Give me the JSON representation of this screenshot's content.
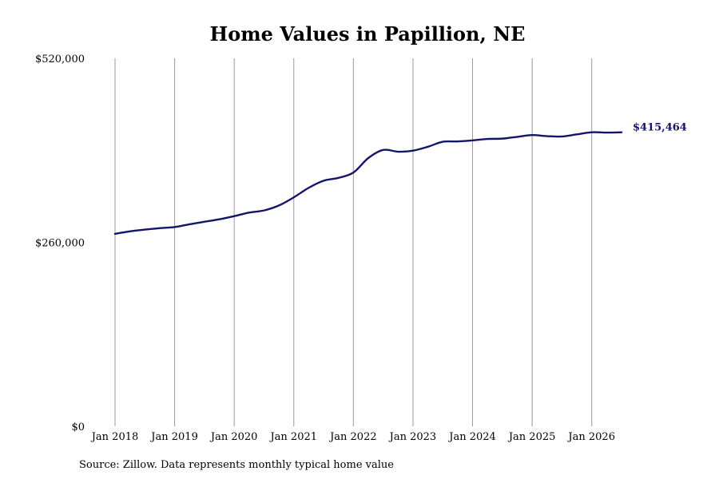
{
  "chart_data": {
    "type": "line",
    "title": "Home Values in Papillion, NE",
    "source_note": "Source: Zillow. Data represents monthly typical home value",
    "ylim": [
      0,
      520000
    ],
    "xlim": [
      2018.0,
      2026.5
    ],
    "y_ticks": [
      {
        "value": 0,
        "label": "$0"
      },
      {
        "value": 260000,
        "label": "$260,000"
      },
      {
        "value": 520000,
        "label": "$520,000"
      }
    ],
    "x_ticks": [
      {
        "value": 2018,
        "label": "Jan 2018"
      },
      {
        "value": 2019,
        "label": "Jan 2019"
      },
      {
        "value": 2020,
        "label": "Jan 2020"
      },
      {
        "value": 2021,
        "label": "Jan 2021"
      },
      {
        "value": 2022,
        "label": "Jan 2022"
      },
      {
        "value": 2023,
        "label": "Jan 2023"
      },
      {
        "value": 2024,
        "label": "Jan 2024"
      },
      {
        "value": 2025,
        "label": "Jan 2025"
      },
      {
        "value": 2026,
        "label": "Jan 2026"
      }
    ],
    "grid": {
      "vertical": true,
      "horizontal": false
    },
    "line_color": "#14146b",
    "end_label": "$415,464",
    "series": [
      {
        "points": [
          [
            2018.0,
            272000
          ],
          [
            2018.25,
            275500
          ],
          [
            2018.5,
            278000
          ],
          [
            2018.75,
            280000
          ],
          [
            2019.0,
            281500
          ],
          [
            2019.25,
            285500
          ],
          [
            2019.5,
            289000
          ],
          [
            2019.75,
            292500
          ],
          [
            2020.0,
            297000
          ],
          [
            2020.25,
            302000
          ],
          [
            2020.5,
            305000
          ],
          [
            2020.75,
            312000
          ],
          [
            2021.0,
            323500
          ],
          [
            2021.25,
            337000
          ],
          [
            2021.5,
            347000
          ],
          [
            2021.75,
            351000
          ],
          [
            2022.0,
            358500
          ],
          [
            2022.25,
            379000
          ],
          [
            2022.5,
            390500
          ],
          [
            2022.75,
            388000
          ],
          [
            2023.0,
            389500
          ],
          [
            2023.25,
            395000
          ],
          [
            2023.5,
            402000
          ],
          [
            2023.75,
            402500
          ],
          [
            2024.0,
            404000
          ],
          [
            2024.25,
            406000
          ],
          [
            2024.5,
            406500
          ],
          [
            2024.75,
            409000
          ],
          [
            2025.0,
            411500
          ],
          [
            2025.25,
            410000
          ],
          [
            2025.5,
            409500
          ],
          [
            2025.75,
            412500
          ],
          [
            2026.0,
            415500
          ],
          [
            2026.25,
            415000
          ],
          [
            2026.5,
            415464
          ]
        ]
      }
    ]
  }
}
